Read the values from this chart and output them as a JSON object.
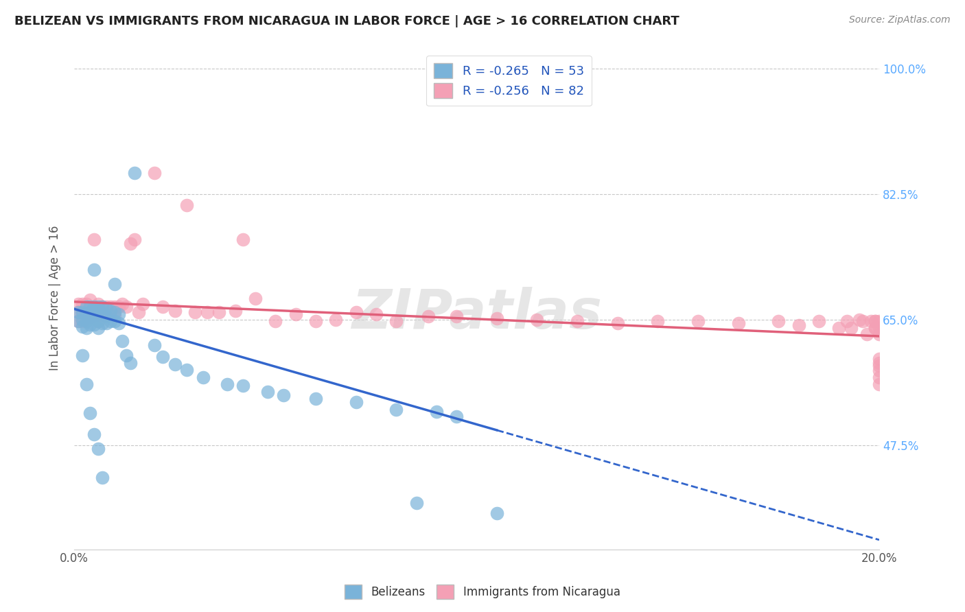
{
  "title": "BELIZEAN VS IMMIGRANTS FROM NICARAGUA IN LABOR FORCE | AGE > 16 CORRELATION CHART",
  "source": "Source: ZipAtlas.com",
  "ylabel": "In Labor Force | Age > 16",
  "xlim": [
    0.0,
    0.2
  ],
  "ylim": [
    0.33,
    1.03
  ],
  "ytick_labels": [
    "47.5%",
    "65.0%",
    "82.5%",
    "100.0%"
  ],
  "ytick_values": [
    0.475,
    0.65,
    0.825,
    1.0
  ],
  "grid_color": "#c8c8c8",
  "background_color": "#ffffff",
  "belizean_color": "#7ab3d9",
  "nicaragua_color": "#f4a0b5",
  "right_axis_color": "#5aaaff",
  "legend_label_1": "R = -0.265   N = 53",
  "legend_label_2": "R = -0.256   N = 82",
  "legend_bottom_1": "Belizeans",
  "legend_bottom_2": "Immigrants from Nicaragua",
  "watermark": "ZIPatlas",
  "bel_line_x0": 0.0,
  "bel_line_y0": 0.665,
  "bel_line_x1": 0.11,
  "bel_line_y1": 0.488,
  "nic_line_x0": 0.0,
  "nic_line_y0": 0.675,
  "nic_line_x1": 0.2,
  "nic_line_y1": 0.627,
  "belizean_x": [
    0.001,
    0.001,
    0.002,
    0.002,
    0.002,
    0.003,
    0.003,
    0.003,
    0.003,
    0.004,
    0.004,
    0.004,
    0.004,
    0.005,
    0.005,
    0.005,
    0.005,
    0.006,
    0.006,
    0.006,
    0.006,
    0.007,
    0.007,
    0.007,
    0.008,
    0.008,
    0.008,
    0.009,
    0.009,
    0.01,
    0.01,
    0.01,
    0.011,
    0.011,
    0.012,
    0.013,
    0.014,
    0.015,
    0.02,
    0.022,
    0.025,
    0.028,
    0.032,
    0.038,
    0.042,
    0.048,
    0.052,
    0.06,
    0.07,
    0.08,
    0.09,
    0.095,
    0.105
  ],
  "belizean_y": [
    0.66,
    0.648,
    0.66,
    0.65,
    0.64,
    0.668,
    0.658,
    0.648,
    0.638,
    0.668,
    0.66,
    0.652,
    0.643,
    0.72,
    0.668,
    0.655,
    0.643,
    0.668,
    0.662,
    0.648,
    0.638,
    0.668,
    0.658,
    0.645,
    0.665,
    0.655,
    0.645,
    0.662,
    0.648,
    0.7,
    0.66,
    0.648,
    0.658,
    0.645,
    0.62,
    0.6,
    0.59,
    0.855,
    0.615,
    0.598,
    0.588,
    0.58,
    0.57,
    0.56,
    0.558,
    0.55,
    0.545,
    0.54,
    0.535,
    0.525,
    0.522,
    0.515,
    0.38
  ],
  "belizean_y_low": [
    0.6,
    0.56,
    0.52,
    0.49,
    0.47,
    0.43,
    0.395
  ],
  "belizean_x_low": [
    0.002,
    0.003,
    0.004,
    0.005,
    0.006,
    0.007,
    0.085
  ],
  "nicaragua_x": [
    0.001,
    0.001,
    0.001,
    0.002,
    0.002,
    0.002,
    0.003,
    0.003,
    0.003,
    0.004,
    0.004,
    0.004,
    0.005,
    0.005,
    0.005,
    0.006,
    0.006,
    0.006,
    0.007,
    0.007,
    0.008,
    0.008,
    0.009,
    0.009,
    0.01,
    0.01,
    0.011,
    0.012,
    0.013,
    0.014,
    0.015,
    0.016,
    0.017,
    0.02,
    0.022,
    0.025,
    0.028,
    0.03,
    0.033,
    0.036,
    0.04,
    0.042,
    0.045,
    0.05,
    0.055,
    0.06,
    0.065,
    0.07,
    0.075,
    0.08,
    0.088,
    0.095,
    0.105,
    0.115,
    0.125,
    0.135,
    0.145,
    0.155,
    0.165,
    0.175,
    0.18,
    0.185,
    0.19,
    0.192,
    0.193,
    0.195,
    0.196,
    0.197,
    0.198,
    0.199,
    0.199,
    0.199,
    0.199,
    0.2,
    0.2,
    0.2,
    0.2,
    0.2,
    0.2,
    0.2,
    0.2,
    0.2
  ],
  "nicaragua_y": [
    0.672,
    0.66,
    0.648,
    0.672,
    0.66,
    0.648,
    0.672,
    0.66,
    0.648,
    0.678,
    0.666,
    0.654,
    0.762,
    0.668,
    0.656,
    0.672,
    0.66,
    0.648,
    0.668,
    0.656,
    0.668,
    0.657,
    0.668,
    0.656,
    0.668,
    0.656,
    0.668,
    0.672,
    0.668,
    0.756,
    0.762,
    0.66,
    0.672,
    0.855,
    0.668,
    0.662,
    0.81,
    0.66,
    0.66,
    0.66,
    0.662,
    0.762,
    0.68,
    0.648,
    0.658,
    0.648,
    0.65,
    0.66,
    0.658,
    0.648,
    0.655,
    0.655,
    0.652,
    0.65,
    0.648,
    0.645,
    0.648,
    0.648,
    0.645,
    0.648,
    0.642,
    0.648,
    0.638,
    0.648,
    0.638,
    0.65,
    0.648,
    0.63,
    0.648,
    0.638,
    0.648,
    0.638,
    0.648,
    0.63,
    0.595,
    0.648,
    0.638,
    0.59,
    0.586,
    0.579,
    0.57,
    0.56
  ]
}
